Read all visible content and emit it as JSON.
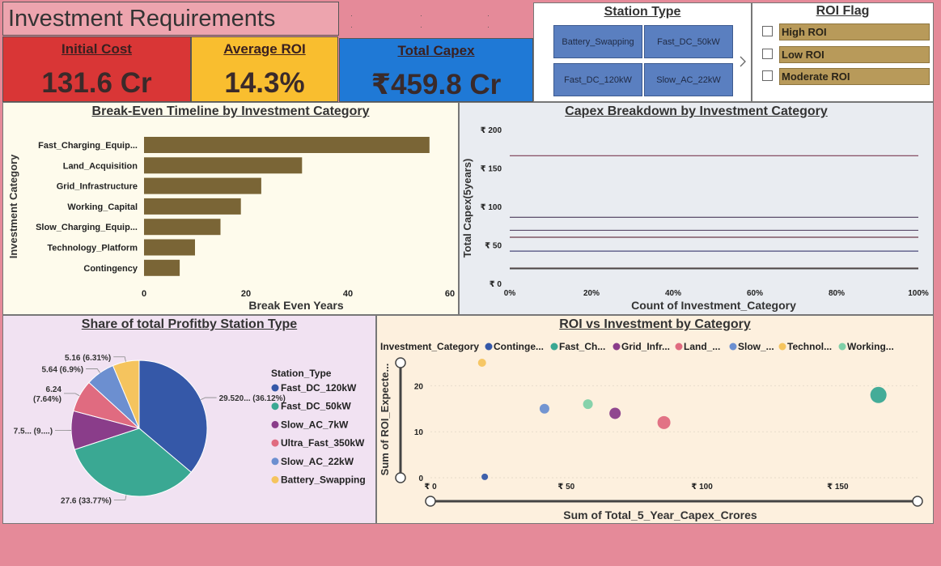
{
  "title": "Investment Requirements",
  "kpis": {
    "initial_cost": {
      "label": "Initial Cost",
      "value": "131.6 Cr",
      "color": "#d93636"
    },
    "average_roi": {
      "label": "Average ROI",
      "value": "14.3%",
      "color": "#f9be2f"
    },
    "total_capex": {
      "label": "Total Capex",
      "value": "₹459.8 Cr",
      "color": "#1f79d6"
    }
  },
  "station_slicer": {
    "title": "Station Type",
    "tiles": [
      "Battery_Swapping",
      "Fast_DC_50kW",
      "Fast_DC_120kW",
      "Slow_AC_22kW"
    ],
    "next_icon": "chevron-right-icon"
  },
  "roi_slicer": {
    "title": "ROI Flag",
    "items": [
      "High ROI",
      "Low ROI",
      "Moderate ROI"
    ]
  },
  "chart_data": [
    {
      "type": "bar",
      "orientation": "horizontal",
      "title": "Break-Even Timeline by Investment Category",
      "xlabel": "Break Even Years",
      "ylabel": "Investment Category",
      "categories": [
        "Fast_Charging_Equip...",
        "Land_Acquisition",
        "Grid_Infrastructure",
        "Working_Capital",
        "Slow_Charging_Equip...",
        "Technology_Platform",
        "Contingency"
      ],
      "values": [
        56,
        31,
        23,
        19,
        15,
        10,
        7
      ],
      "xlim": [
        0,
        60
      ],
      "xticks": [
        "0",
        "20",
        "40",
        "60"
      ],
      "color": "#7a6536"
    },
    {
      "type": "line",
      "title": "Capex Breakdown by Investment Category",
      "xlabel": "Count of Investment_Category",
      "ylabel": "Total Capex(5years)",
      "x": [
        0,
        100
      ],
      "series_levels": [
        166,
        86,
        69,
        60,
        42,
        20,
        19
      ],
      "line_colors": [
        "#7a3a52",
        "#4a3a5a",
        "#5a4a6a",
        "#6a3a4a",
        "#4a4a7a",
        "#6a5a5a",
        "#3a3a3a"
      ],
      "ylim": [
        0,
        200
      ],
      "yticks": [
        "₹ 0",
        "₹ 50",
        "₹ 100",
        "₹ 150",
        "₹ 200"
      ],
      "xticks": [
        "0%",
        "20%",
        "40%",
        "60%",
        "80%",
        "100%"
      ]
    },
    {
      "type": "pie",
      "title": "Share of total Profitby Station Type",
      "legend_title": "Station_Type",
      "series": [
        {
          "name": "Fast_DC_120kW",
          "value": 29.52,
          "label": "29.520... (36.12%)",
          "color": "#3558a8"
        },
        {
          "name": "Fast_DC_50kW",
          "value": 27.6,
          "label": "27.6 (33.77%)",
          "color": "#3aa893"
        },
        {
          "name": "Slow_AC_7kW",
          "value": 7.5,
          "label": "7.5... (9....)",
          "color": "#8a3d8a"
        },
        {
          "name": "Ultra_Fast_350kW",
          "value": 6.24,
          "label": "6.24\n(7.64%)",
          "color": "#e06b80"
        },
        {
          "name": "Slow_AC_22kW",
          "value": 5.64,
          "label": "5.64 (6.9%)",
          "color": "#6c8fd0"
        },
        {
          "name": "Battery_Swapping",
          "value": 5.16,
          "label": "5.16 (6.31%)",
          "color": "#f5c45e"
        }
      ]
    },
    {
      "type": "scatter",
      "title": "ROI vs Investment by Category",
      "xlabel": "Sum of Total_5_Year_Capex_Crores",
      "ylabel": "Sum of ROI_Expecte...",
      "legend_title": "Investment_Category",
      "xlim": [
        0,
        180
      ],
      "ylim": [
        0,
        25
      ],
      "xticks": [
        {
          "v": 0,
          "t": "₹ 0"
        },
        {
          "v": 50,
          "t": "₹ 50"
        },
        {
          "v": 100,
          "t": "₹ 100"
        },
        {
          "v": 150,
          "t": "₹ 150"
        }
      ],
      "yticks": [
        0,
        10,
        20
      ],
      "series": [
        {
          "name": "Continge...",
          "x": 20,
          "y": 0.2,
          "size": 4,
          "color": "#3558a8"
        },
        {
          "name": "Fast_Ch...",
          "x": 165,
          "y": 18,
          "size": 10,
          "color": "#3aa893"
        },
        {
          "name": "Grid_Infr...",
          "x": 68,
          "y": 14,
          "size": 7,
          "color": "#8a3d8a"
        },
        {
          "name": "Land_...",
          "x": 86,
          "y": 12,
          "size": 8,
          "color": "#e06b80"
        },
        {
          "name": "Slow_...",
          "x": 42,
          "y": 15,
          "size": 6,
          "color": "#6c8fd0"
        },
        {
          "name": "Technol...",
          "x": 19,
          "y": 25,
          "size": 5,
          "color": "#f5c45e"
        },
        {
          "name": "Working...",
          "x": 58,
          "y": 16,
          "size": 6,
          "color": "#7fd0a8"
        }
      ]
    }
  ]
}
